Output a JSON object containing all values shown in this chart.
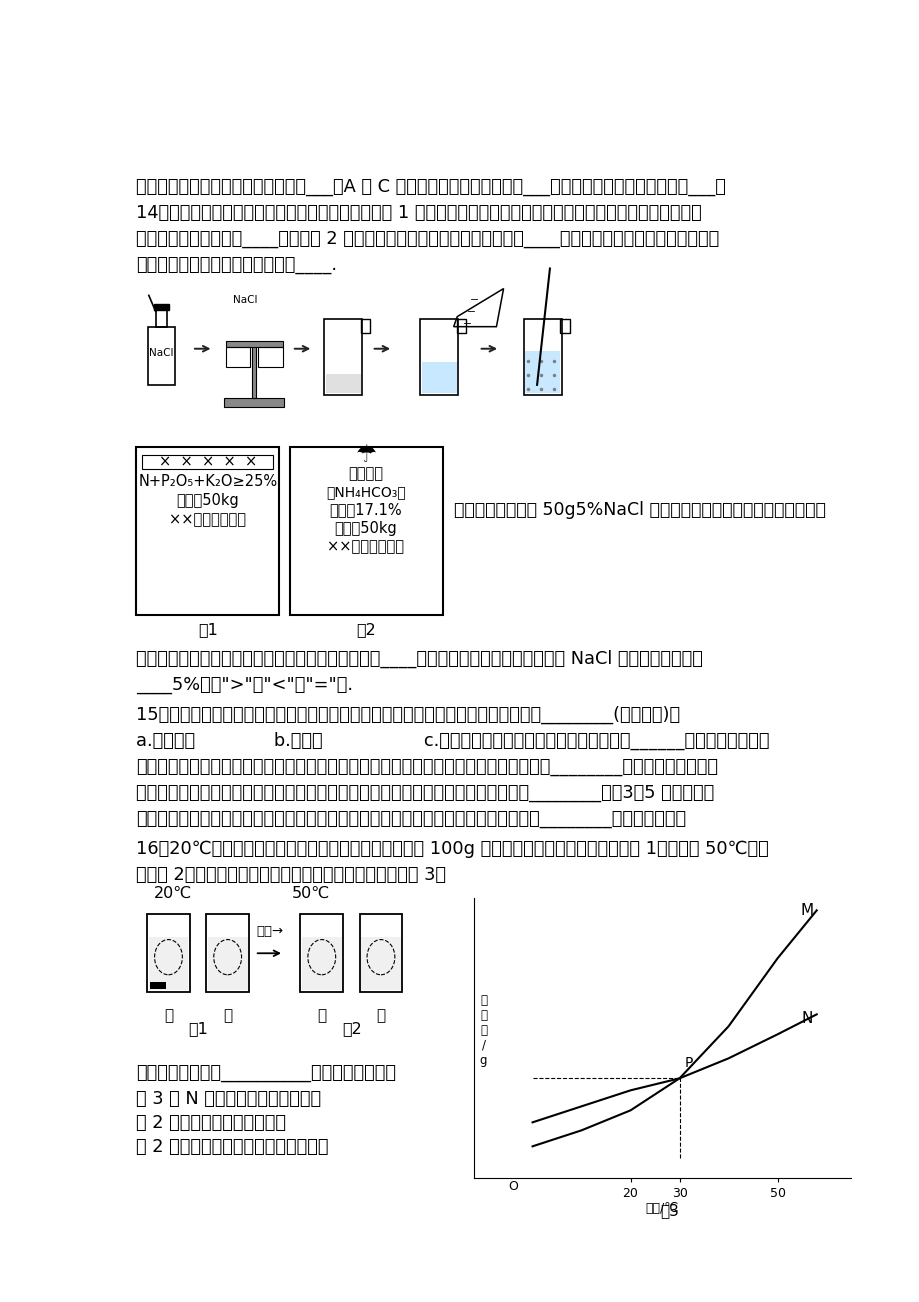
{
  "bg_color": "#ffffff",
  "text_color": "#000000",
  "line1": "图形补充完整；补充此图形的依据是___。A 到 C 的过程中发生改变的粒子是___。氧原子的原子结构示意图为___。",
  "line2": "14．如图是两种常用化肥包装袋上部分说明：根据图 1 中所提供的部分信息，请你给右图对应的化肥起一个合适的名",
  "line3": "称，方框中的名称应为____；根据图 2 信息，计算碳酸氢铵的质量百分含量为____（不考虑杂质中含氮元素）；保存",
  "line4": "碳酸氢铵应注意的一点注意事项是____.",
  "right_text": "下图是某同学配制 50g5%NaCl 溶液的实验过程示意图，请找出该同学",
  "after1": "在实验过程中存在的不正确操作，其正确的操作应为____；按照该同学的操作，所配得的 NaCl 溶液的质量分数将",
  "after2": "____5%（填\">\"、\"<\"或\"=\"）.",
  "q15_1": "15．化学与我们的生活息息相关。下列服装所使用的材料中，属于有机合成材料的是________(选填字母)。",
  "q15_2": "a.纯棉帽子              b.羊毛衫                  c.涤纶运动裤水果和蔬菜中富含的营养素是______，该营养素可以起",
  "q15_3": "到调节新陈代谢等作用。能用洗洁精除去餐具上的油污，是因为洗洁精在水中对油污具有________作用。房屋装修后，",
  "q15_4": "可在室内放一些活性炭来吸收装修材料释放出的甲醛等有毒气体，这是利用活性炭的________性。3～5 公里短途出",
  "q15_5": "行不开私家燃油车，使用电动自行车，有利于减少环境污染。电动自行车行驶时电池将________能转化为电能。",
  "q16_1": "16．20℃时，将等质量的甲、乙固体，分别加入到盛有 100g 水的烧杯中，充分搅拌后现象如图 1，加热到 50℃时现",
  "q16_2": "象如图 2（不考虑水分蒸发），甲、乙固体溶解度曲线如图 3。",
  "bot1": "下列说法正确的是__________（填字母序号）。",
  "bot2": "图 3 中 N 表示的是甲的溶解度曲线",
  "bot3": "图 2 中的甲溶液是不饱和溶液",
  "bot4": "图 2 中甲、乙溶液的溶质质量分数相等"
}
